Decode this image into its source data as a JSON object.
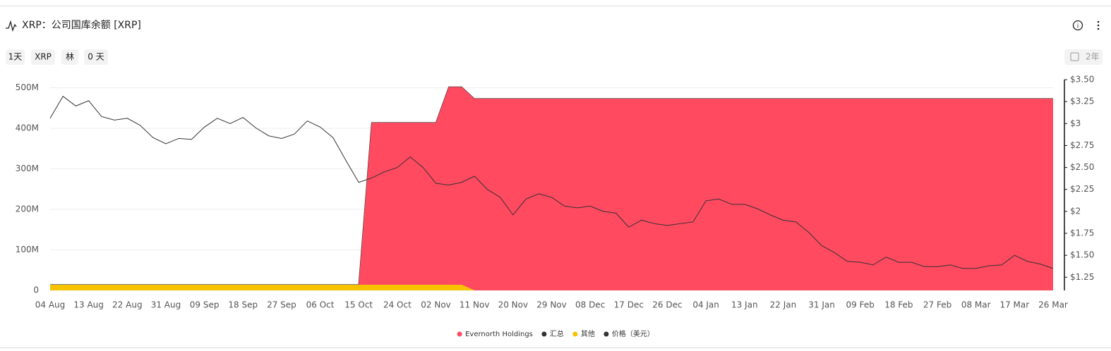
{
  "ui": {
    "title": "XRP：公司国库余额 [XRP]",
    "buttons": [
      "1天",
      "XRP",
      "林",
      "0 天"
    ],
    "range_button": "2年"
  },
  "chart_data": {
    "type": "area",
    "categories": [
      "04 Aug",
      null,
      null,
      "13 Aug",
      null,
      null,
      "22 Aug",
      null,
      null,
      "31 Aug",
      null,
      null,
      "09 Sep",
      null,
      null,
      "18 Sep",
      null,
      null,
      "27 Sep",
      null,
      null,
      "06 Oct",
      null,
      null,
      "15 Oct",
      null,
      null,
      "24 Oct",
      null,
      null,
      "02 Nov",
      null,
      null,
      "11 Nov",
      null,
      null,
      "20 Nov",
      null,
      null,
      "29 Nov",
      null,
      null,
      "08 Dec",
      null,
      null,
      "17 Dec",
      null,
      null,
      "26 Dec",
      null,
      null,
      "04 Jan",
      null,
      null,
      "13 Jan",
      null,
      null,
      "22 Jan",
      null,
      null,
      "31 Jan",
      null,
      null,
      "09 Feb",
      null,
      null,
      "18 Feb",
      null,
      null,
      "27 Feb",
      null,
      null,
      "08 Mar",
      null,
      null,
      "17 Mar",
      null,
      null,
      "26 Mar"
    ],
    "series": [
      {
        "name": "Evernorth Holdings",
        "type": "area",
        "color": "#ff4a60",
        "values": [
          0,
          0,
          0,
          0,
          0,
          0,
          0,
          0,
          0,
          0,
          0,
          0,
          0,
          0,
          0,
          0,
          0,
          0,
          0,
          0,
          0,
          0,
          0,
          0,
          0,
          400000000,
          400000000,
          400000000,
          400000000,
          400000000,
          400000000,
          488000000,
          488000000,
          473000000,
          473000000,
          473000000,
          473000000,
          473000000,
          473000000,
          473000000,
          473000000,
          473000000,
          473000000,
          473000000,
          473000000,
          473000000,
          473000000,
          473000000,
          473000000,
          473000000,
          473000000,
          473000000,
          473000000,
          473000000,
          473000000,
          473000000,
          473000000,
          473000000,
          473000000,
          473000000,
          473000000,
          473000000,
          473000000,
          473000000,
          473000000,
          473000000,
          473000000,
          473000000,
          473000000,
          473000000,
          473000000,
          473000000,
          473000000,
          473000000,
          473000000,
          473000000,
          473000000,
          473000000,
          473000000
        ]
      },
      {
        "name": "汇总",
        "type": "line",
        "color": "#333333",
        "values": [
          14000000,
          14000000,
          14000000,
          14000000,
          14000000,
          14000000,
          14000000,
          14000000,
          14000000,
          14000000,
          14000000,
          14000000,
          14000000,
          14000000,
          14000000,
          14000000,
          14000000,
          14000000,
          14000000,
          14000000,
          14000000,
          14000000,
          14000000,
          14000000,
          14000000,
          414000000,
          414000000,
          414000000,
          414000000,
          414000000,
          414000000,
          502000000,
          502000000,
          473000000,
          473000000,
          473000000,
          473000000,
          473000000,
          473000000,
          473000000,
          473000000,
          473000000,
          473000000,
          473000000,
          473000000,
          473000000,
          473000000,
          473000000,
          473000000,
          473000000,
          473000000,
          473000000,
          473000000,
          473000000,
          473000000,
          473000000,
          473000000,
          473000000,
          473000000,
          473000000,
          473000000,
          473000000,
          473000000,
          473000000,
          473000000,
          473000000,
          473000000,
          473000000,
          473000000,
          473000000,
          473000000,
          473000000,
          473000000,
          473000000,
          473000000,
          473000000,
          473000000,
          473000000,
          473000000
        ]
      },
      {
        "name": "其他",
        "type": "area",
        "color": "#f7c200",
        "values": [
          14000000,
          14000000,
          14000000,
          14000000,
          14000000,
          14000000,
          14000000,
          14000000,
          14000000,
          14000000,
          14000000,
          14000000,
          14000000,
          14000000,
          14000000,
          14000000,
          14000000,
          14000000,
          14000000,
          14000000,
          14000000,
          14000000,
          14000000,
          14000000,
          14000000,
          14000000,
          14000000,
          14000000,
          14000000,
          14000000,
          14000000,
          14000000,
          14000000,
          0,
          0,
          0,
          0,
          0,
          0,
          0,
          0,
          0,
          0,
          0,
          0,
          0,
          0,
          0,
          0,
          0,
          0,
          0,
          0,
          0,
          0,
          0,
          0,
          0,
          0,
          0,
          0,
          0,
          0,
          0,
          0,
          0,
          0,
          0,
          0,
          0,
          0,
          0,
          0,
          0,
          0,
          0,
          0,
          0,
          0
        ]
      },
      {
        "name": "价格（美元）",
        "type": "line",
        "axis": "y2",
        "color": "#333333",
        "values": [
          3.06,
          3.31,
          3.2,
          3.26,
          3.08,
          3.04,
          3.06,
          2.98,
          2.84,
          2.77,
          2.83,
          2.82,
          2.96,
          3.06,
          3.0,
          3.07,
          2.95,
          2.86,
          2.83,
          2.88,
          3.03,
          2.96,
          2.84,
          2.58,
          2.33,
          2.38,
          2.45,
          2.5,
          2.62,
          2.5,
          2.32,
          2.3,
          2.33,
          2.4,
          2.25,
          2.16,
          1.96,
          2.14,
          2.2,
          2.16,
          2.06,
          2.04,
          2.06,
          2.0,
          1.98,
          1.82,
          1.9,
          1.86,
          1.84,
          1.86,
          1.88,
          2.12,
          2.14,
          2.08,
          2.08,
          2.03,
          1.96,
          1.9,
          1.88,
          1.76,
          1.61,
          1.53,
          1.43,
          1.42,
          1.39,
          1.48,
          1.42,
          1.42,
          1.37,
          1.37,
          1.39,
          1.35,
          1.35,
          1.38,
          1.39,
          1.5,
          1.43,
          1.4,
          1.35
        ]
      }
    ],
    "ylim": [
      0,
      520000000
    ],
    "yticks": [
      0,
      {
        "value": 100000000,
        "label": "100M"
      },
      {
        "value": 200000000,
        "label": "200M"
      },
      {
        "value": 300000000,
        "label": "300M"
      },
      {
        "value": 400000000,
        "label": "400M"
      },
      {
        "value": 500000000,
        "label": "500M"
      }
    ],
    "y2lim": [
      1.1,
      3.5
    ],
    "y2ticks": [
      {
        "value": 1.25,
        "label": "$1.25"
      },
      {
        "value": 1.5,
        "label": "$1.50"
      },
      {
        "value": 1.75,
        "label": "$1.75"
      },
      {
        "value": 2,
        "label": "$2"
      },
      {
        "value": 2.25,
        "label": "$2.25"
      },
      {
        "value": 2.5,
        "label": "$2.50"
      },
      {
        "value": 2.75,
        "label": "$2.75"
      },
      {
        "value": 3,
        "label": "$3"
      },
      {
        "value": 3.25,
        "label": "$3.25"
      },
      {
        "value": 3.5,
        "label": "$3.50"
      }
    ],
    "grid": true,
    "stacked": true,
    "legend": "bottom"
  }
}
